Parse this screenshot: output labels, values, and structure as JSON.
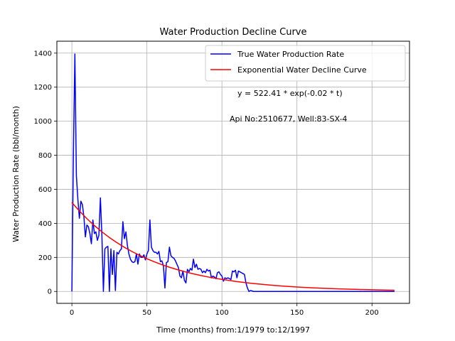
{
  "chart_data": {
    "type": "line",
    "title": "Water Production Decline Curve",
    "xlabel": "Time (months) from:1/1979 to:12/1997",
    "ylabel": "Water Production Rate (bbl/month)",
    "xlim": [
      -10,
      225
    ],
    "ylim": [
      -70,
      1470
    ],
    "xticks": [
      0,
      50,
      100,
      150,
      200
    ],
    "yticks": [
      0,
      200,
      400,
      600,
      800,
      1000,
      1200,
      1400
    ],
    "grid": true,
    "legend_position": "top-right",
    "annotations": [
      "y = 522.41 * exp(-0.02 * t)",
      "Api No:2510677, Well:83-SX-4"
    ],
    "series": [
      {
        "name": "True Water Production Rate",
        "color": "#0000ff",
        "x": [
          0,
          1,
          2,
          3,
          4,
          5,
          6,
          7,
          8,
          9,
          10,
          11,
          12,
          13,
          14,
          15,
          16,
          17,
          18,
          19,
          20,
          21,
          22,
          23,
          24,
          25,
          26,
          27,
          28,
          29,
          30,
          31,
          32,
          33,
          34,
          35,
          36,
          37,
          38,
          39,
          40,
          41,
          42,
          43,
          44,
          45,
          46,
          47,
          48,
          49,
          50,
          51,
          52,
          53,
          54,
          55,
          56,
          57,
          58,
          59,
          60,
          61,
          62,
          63,
          64,
          65,
          66,
          67,
          68,
          69,
          70,
          71,
          72,
          73,
          74,
          75,
          76,
          77,
          78,
          79,
          80,
          81,
          82,
          83,
          84,
          85,
          86,
          87,
          88,
          89,
          90,
          91,
          92,
          93,
          94,
          95,
          96,
          97,
          98,
          99,
          100,
          101,
          102,
          103,
          104,
          105,
          106,
          107,
          108,
          109,
          110,
          111,
          112,
          113,
          114,
          115,
          116,
          117,
          118,
          119,
          120,
          121,
          122,
          123,
          124,
          125,
          126,
          127,
          128,
          129,
          130,
          131,
          132,
          133,
          134,
          135,
          136,
          137,
          138,
          139,
          140,
          145,
          150,
          160,
          170,
          180,
          190,
          200,
          210,
          215
        ],
        "y": [
          0,
          800,
          1395,
          680,
          540,
          430,
          530,
          510,
          440,
          320,
          390,
          380,
          340,
          280,
          420,
          340,
          350,
          300,
          330,
          550,
          330,
          0,
          250,
          260,
          265,
          0,
          250,
          100,
          240,
          5,
          230,
          220,
          240,
          250,
          410,
          310,
          350,
          270,
          220,
          190,
          175,
          170,
          175,
          220,
          160,
          220,
          200,
          200,
          215,
          185,
          220,
          240,
          420,
          260,
          240,
          230,
          230,
          220,
          235,
          175,
          180,
          150,
          20,
          170,
          175,
          260,
          210,
          200,
          195,
          180,
          160,
          140,
          90,
          80,
          120,
          65,
          50,
          130,
          115,
          135,
          125,
          190,
          140,
          160,
          130,
          135,
          130,
          110,
          120,
          110,
          130,
          120,
          125,
          80,
          90,
          85,
          75,
          110,
          115,
          100,
          90,
          60,
          80,
          75,
          80,
          75,
          70,
          120,
          115,
          125,
          80,
          120,
          115,
          110,
          105,
          100,
          50,
          20,
          0,
          5,
          3,
          0,
          0,
          0,
          0,
          0,
          0,
          0,
          0,
          0,
          0,
          0,
          0,
          0,
          0,
          0,
          0,
          0,
          0,
          0,
          0,
          0,
          0,
          0,
          0,
          0,
          0,
          0,
          0,
          0
        ]
      },
      {
        "name": "Exponential Water Decline Curve",
        "color": "#ff0000",
        "x": [
          0,
          5,
          10,
          15,
          20,
          25,
          30,
          35,
          40,
          45,
          50,
          55,
          60,
          65,
          70,
          75,
          80,
          85,
          90,
          95,
          100,
          110,
          120,
          130,
          140,
          150,
          160,
          170,
          180,
          190,
          200,
          210,
          215
        ],
        "y": [
          522.41,
          472.7,
          427.7,
          387.0,
          350.2,
          316.8,
          286.7,
          259.4,
          234.7,
          212.4,
          192.2,
          173.9,
          157.3,
          142.3,
          128.8,
          116.5,
          105.4,
          95.4,
          86.3,
          78.1,
          70.7,
          57.9,
          47.4,
          38.8,
          31.8,
          26.0,
          21.3,
          17.4,
          14.3,
          11.7,
          9.6,
          7.8,
          7.1
        ]
      }
    ]
  }
}
